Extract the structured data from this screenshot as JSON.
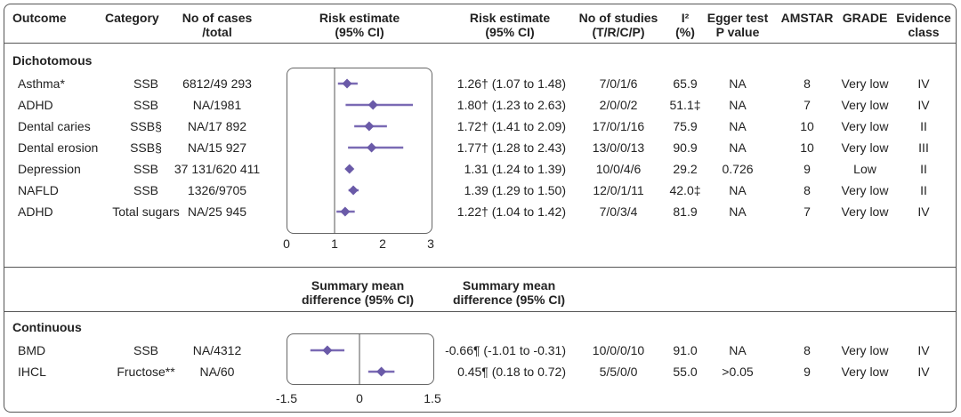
{
  "headers": {
    "outcome": "Outcome",
    "category": "Category",
    "cases_line1": "No of cases",
    "cases_line2": "/total",
    "plot_line1": "Risk estimate",
    "plot_line2": "(95% CI)",
    "estimate_line1": "Risk estimate",
    "estimate_line2": "(95% CI)",
    "studies_line1": "No of studies",
    "studies_line2": "(T/R/C/P)",
    "i2_line1": "I²",
    "i2_line2": "(%)",
    "egger_line1": "Egger test",
    "egger_line2": "P value",
    "amstar": "AMSTAR",
    "grade": "GRADE",
    "evidence_line1": "Evidence",
    "evidence_line2": "class"
  },
  "dichotomous": {
    "label": "Dichotomous",
    "axis_ticks": [
      "0",
      "1",
      "2",
      "3"
    ],
    "rows": [
      {
        "outcome": "Asthma*",
        "category": "SSB",
        "cases": "6812/49 293",
        "estimate": "1.26† (1.07 to 1.48)",
        "studies": "7/0/1/6",
        "i2": "65.9",
        "egger": "NA",
        "amstar": "8",
        "grade": "Very low",
        "evidence": "IV"
      },
      {
        "outcome": "ADHD",
        "category": "SSB",
        "cases": "NA/1981",
        "estimate": "1.80† (1.23 to 2.63)",
        "studies": "2/0/0/2",
        "i2": "51.1‡",
        "egger": "NA",
        "amstar": "7",
        "grade": "Very low",
        "evidence": "IV"
      },
      {
        "outcome": "Dental caries",
        "category": "SSB§",
        "cases": "NA/17 892",
        "estimate": "1.72† (1.41 to 2.09)",
        "studies": "17/0/1/16",
        "i2": "75.9",
        "egger": "NA",
        "amstar": "10",
        "grade": "Very low",
        "evidence": "II"
      },
      {
        "outcome": "Dental erosion",
        "category": "SSB§",
        "cases": "NA/15 927",
        "estimate": "1.77† (1.28 to 2.43)",
        "studies": "13/0/0/13",
        "i2": "90.9",
        "egger": "NA",
        "amstar": "10",
        "grade": "Very low",
        "evidence": "III"
      },
      {
        "outcome": "Depression",
        "category": "SSB",
        "cases": "37 131/620 411",
        "estimate": "1.31 (1.24 to 1.39)",
        "studies": "10/0/4/6",
        "i2": "29.2",
        "egger": "0.726",
        "amstar": "9",
        "grade": "Low",
        "evidence": "II"
      },
      {
        "outcome": "NAFLD",
        "category": "SSB",
        "cases": "1326/9705",
        "estimate": "1.39 (1.29 to 1.50)",
        "studies": "12/0/1/11",
        "i2": "42.0‡",
        "egger": "NA",
        "amstar": "8",
        "grade": "Very low",
        "evidence": "II"
      },
      {
        "outcome": "ADHD",
        "category": "Total sugars",
        "cases": "NA/25 945",
        "estimate": "1.22† (1.04 to 1.42)",
        "studies": "7/0/3/4",
        "i2": "81.9",
        "egger": "NA",
        "amstar": "7",
        "grade": "Very low",
        "evidence": "IV"
      }
    ]
  },
  "continuous": {
    "label": "Continuous",
    "plot_header_line1": "Summary mean",
    "plot_header_line2": "difference (95% CI)",
    "estimate_header_line1": "Summary mean",
    "estimate_header_line2": "difference (95% CI)",
    "axis_ticks": [
      "-1.5",
      "0",
      "1.5"
    ],
    "rows": [
      {
        "outcome": "BMD",
        "category": "SSB",
        "cases": "NA/4312",
        "estimate": "-0.66¶ (-1.01 to -0.31)",
        "studies": "10/0/0/10",
        "i2": "91.0",
        "egger": "NA",
        "amstar": "8",
        "grade": "Very low",
        "evidence": "IV"
      },
      {
        "outcome": "IHCL",
        "category": "Fructose**",
        "cases": "NA/60",
        "estimate": "0.45¶ (0.18 to 0.72)",
        "studies": "5/5/0/0",
        "i2": "55.0",
        "egger": ">0.05",
        "amstar": "9",
        "grade": "Very low",
        "evidence": "IV"
      }
    ]
  },
  "colors": {
    "point": "#6a5aa8",
    "ci": "#7a6ab4",
    "refline": "#555555"
  },
  "chart_data": [
    {
      "type": "scatter",
      "title": "Risk estimate (95% CI)",
      "xlim": [
        0,
        3
      ],
      "reference_line": 1,
      "categories": [
        "Asthma*",
        "ADHD",
        "Dental caries",
        "Dental erosion",
        "Depression",
        "NAFLD",
        "ADHD"
      ],
      "estimate": [
        1.26,
        1.8,
        1.72,
        1.77,
        1.31,
        1.39,
        1.22
      ],
      "ci_low": [
        1.07,
        1.23,
        1.41,
        1.28,
        1.24,
        1.29,
        1.04
      ],
      "ci_high": [
        1.48,
        2.63,
        2.09,
        2.43,
        1.39,
        1.5,
        1.42
      ]
    },
    {
      "type": "scatter",
      "title": "Summary mean difference (95% CI)",
      "xlim": [
        -1.5,
        1.5
      ],
      "reference_line": 0,
      "categories": [
        "BMD",
        "IHCL"
      ],
      "estimate": [
        -0.66,
        0.45
      ],
      "ci_low": [
        -1.01,
        0.18
      ],
      "ci_high": [
        -0.31,
        0.72
      ]
    }
  ]
}
